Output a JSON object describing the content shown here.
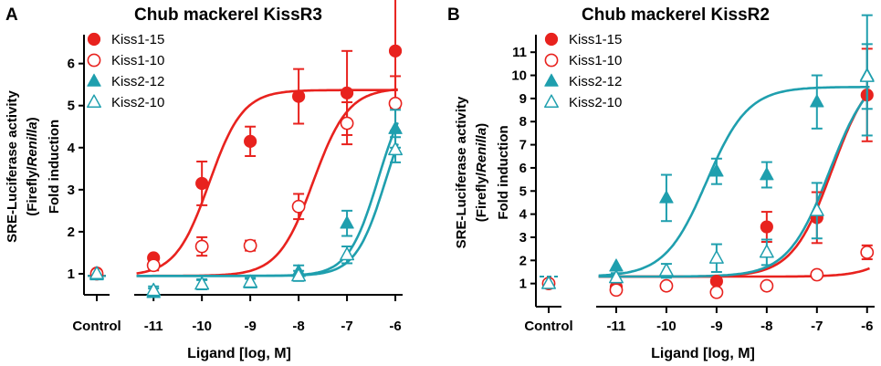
{
  "colors": {
    "red": "#e8221e",
    "teal": "#1f9fae",
    "axis": "#000000"
  },
  "chart_data": [
    {
      "panel": "A",
      "type": "scatter",
      "title": "Chub mackerel KissR3",
      "ylabel_lines": [
        "SRE-Luciferase activity",
        "(Firefly/",
        "Renilla",
        ")",
        "Fold induction"
      ],
      "xlabel": "Ligand [log, M]",
      "ylim": [
        0.5,
        6.6
      ],
      "yticks": [
        1,
        2,
        3,
        4,
        5,
        6
      ],
      "xlim": [
        -11.4,
        -5.85
      ],
      "xticks": [
        -11,
        -10,
        -9,
        -8,
        -7,
        -6
      ],
      "control_label": "Control",
      "x_tick_labels": [
        "-11",
        "-10",
        "-9",
        "-8",
        "-7",
        "-6"
      ],
      "series": [
        {
          "name": "Kiss1-15",
          "color": "red",
          "marker": "circle",
          "filled": true,
          "control": {
            "y": 1.02,
            "err": 0
          },
          "x": [
            -11,
            -10,
            -9,
            -8,
            -7,
            -6
          ],
          "y": [
            1.38,
            3.15,
            4.15,
            5.22,
            5.3,
            6.3
          ],
          "err": [
            0.06,
            0.52,
            0.35,
            0.65,
            1.0,
            1.35
          ],
          "fit": {
            "bottom": 0.95,
            "top": 5.37,
            "logec50": -9.85,
            "hill": 1.25
          }
        },
        {
          "name": "Kiss1-10",
          "color": "red",
          "marker": "circle",
          "filled": false,
          "control": {
            "y": 1.0,
            "err": 0
          },
          "x": [
            -11,
            -10,
            -9,
            -8,
            -7,
            -6
          ],
          "y": [
            1.2,
            1.65,
            1.67,
            2.6,
            4.58,
            5.05
          ],
          "err": [
            0.12,
            0.22,
            0.12,
            0.3,
            0.5,
            0.65
          ],
          "fit": {
            "bottom": 0.95,
            "top": 5.42,
            "logec50": -7.7,
            "hill": 1.2
          }
        },
        {
          "name": "Kiss2-12",
          "color": "teal",
          "marker": "triangle",
          "filled": true,
          "control": {
            "y": 0.97,
            "err": 0
          },
          "x": [
            -11,
            -10,
            -9,
            -8,
            -7,
            -6
          ],
          "y": [
            0.55,
            0.75,
            0.78,
            1.05,
            2.2,
            4.45
          ],
          "err": [
            0.1,
            0.12,
            0.1,
            0.15,
            0.3,
            0.45
          ],
          "fit": {
            "bottom": 0.95,
            "top": 5.6,
            "logec50": -6.35,
            "hill": 1.4
          }
        },
        {
          "name": "Kiss2-10",
          "color": "teal",
          "marker": "triangle",
          "filled": false,
          "control": {
            "y": 1.0,
            "err": 0
          },
          "x": [
            -11,
            -10,
            -9,
            -8,
            -7,
            -6
          ],
          "y": [
            0.6,
            0.75,
            0.8,
            0.95,
            1.45,
            3.95
          ],
          "err": [
            0.1,
            0.1,
            0.1,
            0.12,
            0.2,
            0.3
          ],
          "fit": {
            "bottom": 0.95,
            "top": 5.5,
            "logec50": -6.2,
            "hill": 1.4
          }
        }
      ]
    },
    {
      "panel": "B",
      "type": "scatter",
      "title": "Chub mackerel KissR2",
      "ylabel_lines": [
        "SRE-Luciferase activity",
        "(Firefly/",
        "Renilla",
        ")",
        "Fold induction"
      ],
      "xlabel": "Ligand [log, M]",
      "ylim": [
        0,
        11.6
      ],
      "yticks": [
        1,
        2,
        3,
        4,
        5,
        6,
        7,
        8,
        9,
        10,
        11
      ],
      "xlim": [
        -11.4,
        -5.85
      ],
      "xticks": [
        -11,
        -10,
        -9,
        -8,
        -7,
        -6
      ],
      "control_label": "Control",
      "x_tick_labels": [
        "-11",
        "-10",
        "-9",
        "-8",
        "-7",
        "-6"
      ],
      "series": [
        {
          "name": "Kiss1-15",
          "color": "red",
          "marker": "circle",
          "filled": true,
          "control": {
            "y": 1.0,
            "err": 0
          },
          "x": [
            -11,
            -10,
            -9,
            -8,
            -7,
            -6
          ],
          "y": [
            0.85,
            0.9,
            1.1,
            3.45,
            3.85,
            9.15
          ],
          "err": [
            0,
            0,
            0,
            0.65,
            1.1,
            2.0
          ],
          "fit": {
            "bottom": 1.3,
            "top": 10.5,
            "logec50": -6.7,
            "hill": 1.1
          }
        },
        {
          "name": "Kiss1-10",
          "color": "red",
          "marker": "circle",
          "filled": false,
          "control": {
            "y": 1.0,
            "err": 0
          },
          "x": [
            -11,
            -10,
            -9,
            -8,
            -7,
            -6
          ],
          "y": [
            0.72,
            0.9,
            0.62,
            0.9,
            1.38,
            2.35
          ],
          "err": [
            0,
            0,
            0,
            0,
            0,
            0.3
          ],
          "fit": {
            "bottom": 1.3,
            "top": 3.8,
            "logec50": -5.3,
            "hill": 1.2
          }
        },
        {
          "name": "Kiss2-12",
          "color": "teal",
          "marker": "triangle",
          "filled": true,
          "control": {
            "y": 1.0,
            "err": 0
          },
          "x": [
            -11,
            -10,
            -9,
            -8,
            -7,
            -6
          ],
          "y": [
            1.75,
            4.7,
            5.85,
            5.7,
            8.85,
            10.0
          ],
          "err": [
            0,
            1.0,
            0.55,
            0.55,
            1.15,
            2.6
          ],
          "fit": {
            "bottom": 1.3,
            "top": 9.5,
            "logec50": -9.2,
            "hill": 1.05
          }
        },
        {
          "name": "Kiss2-10",
          "color": "teal",
          "marker": "triangle",
          "filled": false,
          "control": {
            "y": 1.0,
            "err": 0
          },
          "x": [
            -11,
            -10,
            -9,
            -8,
            -7,
            -6
          ],
          "y": [
            1.25,
            1.55,
            2.1,
            2.35,
            4.15,
            9.95
          ],
          "err": [
            0.2,
            0.3,
            0.6,
            0.55,
            1.2,
            1.4
          ],
          "fit": {
            "bottom": 1.3,
            "top": 10.4,
            "logec50": -6.75,
            "hill": 1.05
          }
        }
      ]
    }
  ]
}
